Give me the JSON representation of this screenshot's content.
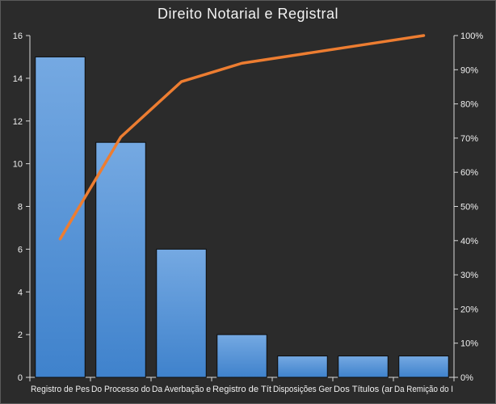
{
  "chart_data": {
    "type": "bar",
    "title": "Direito Notarial e Registral",
    "categories": [
      "Registro de Pes",
      "Do Processo do",
      "Da Averbação e",
      "Registro de Tít",
      "Disposições Ger",
      "Dos Títulos (ar",
      "Da Remição do I"
    ],
    "series": [
      {
        "type": "bar",
        "values": [
          15,
          11,
          6,
          2,
          1,
          1,
          1
        ]
      },
      {
        "type": "line",
        "axis": "right",
        "values": [
          40.5,
          70.3,
          86.5,
          91.9,
          94.6,
          97.3,
          100
        ]
      }
    ],
    "ylim": [
      0,
      16
    ],
    "y_ticks": [
      "0",
      "2",
      "4",
      "6",
      "8",
      "10",
      "12",
      "14",
      "16"
    ],
    "y2lim": [
      0,
      100
    ],
    "y2_ticks": [
      "0%",
      "10%",
      "20%",
      "30%",
      "40%",
      "50%",
      "60%",
      "70%",
      "80%",
      "90%",
      "100%"
    ],
    "grid": false,
    "legend": "none",
    "colors": {
      "bar": "#4a8fd6",
      "bar_top": "#75a9e2",
      "line": "#ed7d31",
      "axis": "#d9d9d9"
    }
  }
}
